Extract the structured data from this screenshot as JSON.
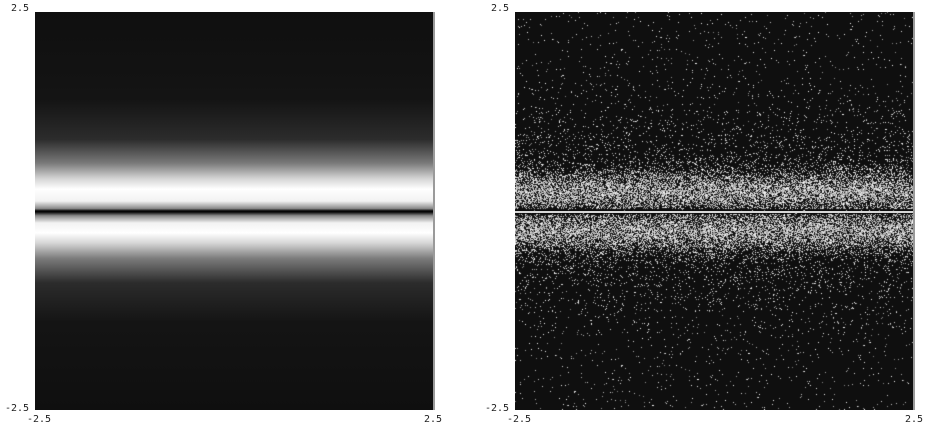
{
  "panels": [
    {
      "name": "smooth-density",
      "y_top_label": "2.5",
      "y_bottom_label": "-2.5",
      "x_left_label": "-2.5",
      "x_right_label": "2.5"
    },
    {
      "name": "sampled-density",
      "y_top_label": "2.5",
      "y_bottom_label": "-2.5",
      "x_left_label": "-2.5",
      "x_right_label": "2.5"
    }
  ],
  "colors": {
    "background": "#ffffff",
    "panel_fill": "#0f0f0f",
    "bright": "#ffffff",
    "axis_text": "#222222"
  }
}
